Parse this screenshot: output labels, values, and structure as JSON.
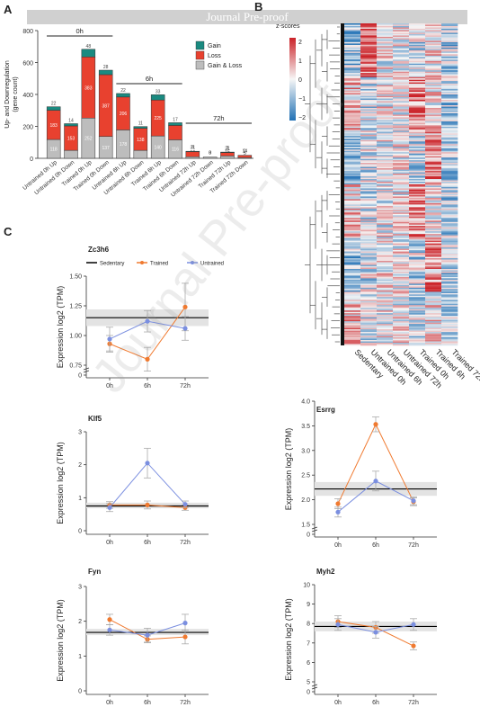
{
  "banner": "Journal Pre-proof",
  "watermark": "Journal Pre-proof",
  "panel_labels": {
    "a": "A",
    "b": "B",
    "c": "C"
  },
  "colors": {
    "gain": "#1a8a80",
    "loss": "#e8412f",
    "gainloss": "#bdbdbd",
    "sedentary": "#000000",
    "trained": "#f07a30",
    "untrained": "#7b8fe0",
    "band": "#e3e3e3"
  },
  "chart_data": [
    {
      "type": "bar",
      "panel": "A",
      "ylabel": "Up- and Downregulation (gene count)",
      "ylim": [
        0,
        800
      ],
      "yticks": [
        "0",
        "200",
        "400",
        "600",
        "800"
      ],
      "legend": [
        "Gain",
        "Loss",
        "Gain & Loss"
      ],
      "categories": [
        "Untrained 0h Up",
        "Untrained 0h Down",
        "Trained 0h Up",
        "Trained 0h Down",
        "Untrained 6h Up",
        "Untrained 6h Down",
        "Trained 6h Up",
        "Trained 6h Down",
        "Untrained 72h Up",
        "Untrained 72h Down",
        "Trained 72h Up",
        "Trained 72h Down"
      ],
      "series": [
        {
          "name": "Gain & Loss",
          "values": [
            118,
            50,
            252,
            137,
            178,
            50,
            140,
            116,
            10,
            8,
            15,
            5
          ]
        },
        {
          "name": "Loss",
          "values": [
            183,
            153,
            383,
            387,
            206,
            138,
            225,
            90,
            31,
            0,
            21,
            14
          ]
        },
        {
          "name": "Gain",
          "values": [
            22,
            14,
            48,
            28,
            22,
            11,
            33,
            17,
            3,
            0,
            3,
            0
          ]
        }
      ],
      "seglabels": [
        [
          "118",
          "183",
          "22"
        ],
        [
          "",
          "153",
          "14"
        ],
        [
          "252",
          "383",
          "48"
        ],
        [
          "137",
          "387",
          "28"
        ],
        [
          "178",
          "206",
          "22"
        ],
        [
          "",
          "138",
          "11"
        ],
        [
          "140",
          "225",
          "33"
        ],
        [
          "116",
          "",
          "17"
        ],
        [
          "10",
          "31",
          "3"
        ],
        [
          "8",
          "0",
          "0"
        ],
        [
          "15",
          "21",
          "3"
        ],
        [
          "5",
          "14",
          "0"
        ]
      ],
      "groups": [
        "0h",
        "6h",
        "72h"
      ]
    },
    {
      "type": "heatmap",
      "panel": "B",
      "legend_title": "z-scores",
      "scale_ticks": [
        "2",
        "1",
        "0",
        "−1",
        "−2"
      ],
      "columns": [
        "Sedentary",
        "Untrained 0h",
        "Untrained 6h",
        "Untrained 72h",
        "Trained 0h",
        "Trained 6h",
        "Trained 72h"
      ]
    },
    {
      "type": "line",
      "panel": "C",
      "legend": [
        "Sedentary",
        "Trained",
        "Untrained"
      ],
      "x": [
        "0h",
        "6h",
        "72h"
      ],
      "xlabel": "",
      "ylabel": "Expression log2 (TPM)",
      "genes": [
        {
          "name": "Zc3h6",
          "ylim": [
            0,
            1.5
          ],
          "yticks": [
            "0",
            "0.75",
            "1.00",
            "1.25",
            "1.50"
          ],
          "break_low": 0.75,
          "sedentary": 1.15,
          "sedentary_band": [
            1.08,
            1.22
          ],
          "trained": [
            0.93,
            0.8,
            1.24
          ],
          "trained_err": [
            0.07,
            0.1,
            0.2
          ],
          "untrained": [
            0.97,
            1.12,
            1.06
          ],
          "untrained_err": [
            0.1,
            0.09,
            0.1
          ]
        },
        {
          "name": "Klf5",
          "ylim": [
            0,
            3
          ],
          "yticks": [
            "0",
            "1",
            "2",
            "3"
          ],
          "sedentary": 0.75,
          "sedentary_band": [
            0.68,
            0.85
          ],
          "trained": [
            0.78,
            0.78,
            0.7
          ],
          "trained_err": [
            0.1,
            0.12,
            0.08
          ],
          "untrained": [
            0.7,
            2.05,
            0.8
          ],
          "untrained_err": [
            0.12,
            0.45,
            0.1
          ]
        },
        {
          "name": "Esrrg",
          "ylim": [
            0,
            4
          ],
          "yticks": [
            "0",
            "1.5",
            "2.0",
            "2.5",
            "3.0",
            "3.5",
            "4.0"
          ],
          "break_low": 1.5,
          "sedentary": 2.22,
          "sedentary_band": [
            2.08,
            2.36
          ],
          "trained": [
            1.92,
            3.53,
            1.96
          ],
          "trained_err": [
            0.1,
            0.15,
            0.08
          ],
          "untrained": [
            1.75,
            2.38,
            1.98
          ],
          "untrained_err": [
            0.1,
            0.2,
            0.08
          ]
        },
        {
          "name": "Fyn",
          "ylim": [
            0,
            3
          ],
          "yticks": [
            "0",
            "1",
            "2",
            "3"
          ],
          "sedentary": 1.68,
          "sedentary_band": [
            1.6,
            1.78
          ],
          "trained": [
            2.05,
            1.48,
            1.55
          ],
          "trained_err": [
            0.15,
            0.1,
            0.2
          ],
          "untrained": [
            1.75,
            1.6,
            1.95
          ],
          "untrained_err": [
            0.15,
            0.2,
            0.25
          ]
        },
        {
          "name": "Myh2",
          "ylim": [
            0,
            10
          ],
          "yticks": [
            "0",
            "5",
            "6",
            "7",
            "8",
            "9",
            "10"
          ],
          "break_low": 5,
          "sedentary": 7.85,
          "sedentary_band": [
            7.6,
            8.1
          ],
          "trained": [
            8.1,
            7.8,
            6.85
          ],
          "trained_err": [
            0.3,
            0.3,
            0.2
          ],
          "untrained": [
            7.95,
            7.55,
            7.95
          ],
          "untrained_err": [
            0.3,
            0.3,
            0.3
          ]
        }
      ]
    }
  ]
}
